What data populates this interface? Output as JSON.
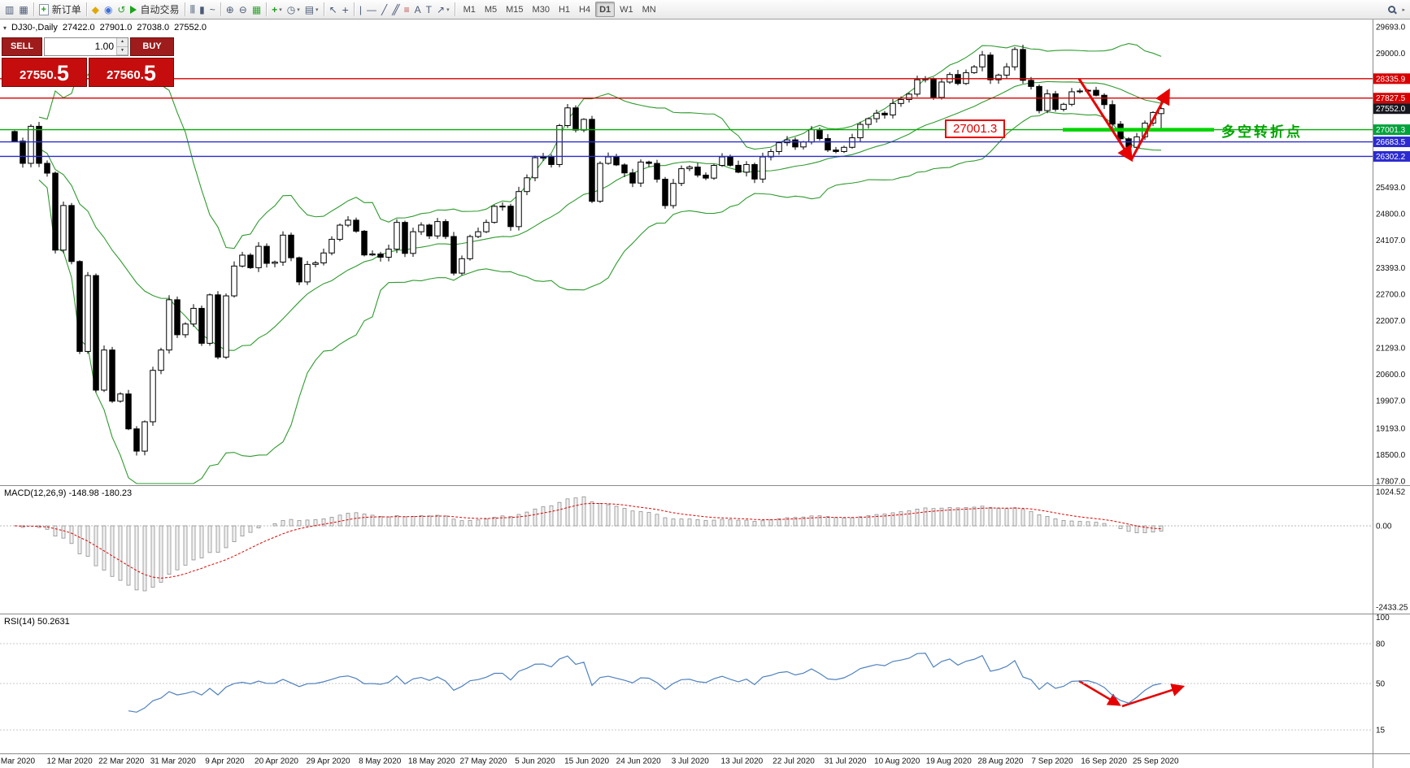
{
  "toolbar": {
    "new_order_label": "新订单",
    "auto_trading_label": "自动交易",
    "timeframes": [
      "M1",
      "M5",
      "M15",
      "M30",
      "H1",
      "H4",
      "D1",
      "W1",
      "MN"
    ],
    "active_timeframe": "D1",
    "icons": [
      "new-chart",
      "profiles",
      "new-order",
      "metaeditor",
      "market",
      "refresh",
      "auto-trading",
      "bar-chart",
      "candlestick-chart",
      "line-chart",
      "zoom-in",
      "zoom-out",
      "tile-windows",
      "indicators",
      "periods",
      "templates",
      "cursor",
      "crosshair",
      "vertical-line",
      "horizontal-line",
      "trendline",
      "channel",
      "fibonacci",
      "text",
      "text-label",
      "arrow-shapes",
      "search"
    ]
  },
  "trade_panel": {
    "sell_label": "SELL",
    "buy_label": "BUY",
    "volume": "1.00",
    "sell_price": "27550.5",
    "buy_price": "27560.5",
    "sell_price_main": "27550.",
    "sell_price_pip": "5",
    "buy_price_main": "27560.",
    "buy_price_pip": "5"
  },
  "chart": {
    "header": {
      "symbol_period": "DJ30-,Daily",
      "open": "27422.0",
      "high": "27901.0",
      "low": "27038.0",
      "close": "27552.0"
    },
    "annotations": {
      "price_callout": "27001.3",
      "turning_point": "多空转折点"
    },
    "price_axis": {
      "plain_labels": [
        {
          "text": "29693.0",
          "price": 29693.0
        },
        {
          "text": "29000.0",
          "price": 29000.0
        },
        {
          "text": "25493.0",
          "price": 25493.0
        },
        {
          "text": "24800.0",
          "price": 24800.0
        },
        {
          "text": "24107.0",
          "price": 24107.0
        },
        {
          "text": "23393.0",
          "price": 23393.0
        },
        {
          "text": "22700.0",
          "price": 22700.0
        },
        {
          "text": "22007.0",
          "price": 22007.0
        },
        {
          "text": "21293.0",
          "price": 21293.0
        },
        {
          "text": "20600.0",
          "price": 20600.0
        },
        {
          "text": "19907.0",
          "price": 19907.0
        },
        {
          "text": "19193.0",
          "price": 19193.0
        },
        {
          "text": "18500.0",
          "price": 18500.0
        },
        {
          "text": "17807.0",
          "price": 17807.0
        }
      ],
      "markers": [
        {
          "text": "28335.9",
          "price": 28335.9,
          "bg": "#d60000"
        },
        {
          "text": "27827.5",
          "price": 27827.5,
          "bg": "#d60000"
        },
        {
          "text": "27552.0",
          "price": 27552.0,
          "bg": "#17171f"
        },
        {
          "text": "27001.3",
          "price": 27001.3,
          "bg": "#00a23c"
        },
        {
          "text": "26683.5",
          "price": 26683.5,
          "bg": "#2b2bd0"
        },
        {
          "text": "26302.2",
          "price": 26302.2,
          "bg": "#2b2bd0"
        }
      ]
    },
    "level_lines": [
      {
        "price": 28335.9,
        "color": "#d60000"
      },
      {
        "price": 27827.5,
        "color": "#d60000"
      },
      {
        "price": 27001.3,
        "color": "#00b000"
      },
      {
        "price": 26683.5,
        "color": "#2b2bd0"
      },
      {
        "price": 26302.2,
        "color": "#2b2bd0"
      }
    ],
    "time_axis": [
      "Mar 2020",
      "12 Mar 2020",
      "22 Mar 2020",
      "31 Mar 2020",
      "9 Apr 2020",
      "20 Apr 2020",
      "29 Apr 2020",
      "8 May 2020",
      "18 May 2020",
      "27 May 2020",
      "5 Jun 2020",
      "15 Jun 2020",
      "24 Jun 2020",
      "3 Jul 2020",
      "13 Jul 2020",
      "22 Jul 2020",
      "31 Jul 2020",
      "10 Aug 2020",
      "19 Aug 2020",
      "28 Aug 2020",
      "7 Sep 2020",
      "16 Sep 2020",
      "25 Sep 2020"
    ]
  },
  "indicators": {
    "macd": {
      "title": "MACD(12,26,9)",
      "values": "-148.98 -180.23",
      "axis_labels": [
        {
          "text": "1024.52",
          "value": 1024.52
        },
        {
          "text": "0.00",
          "value": 0
        },
        {
          "text": "-2433.25",
          "value": -2433.25
        }
      ]
    },
    "rsi": {
      "title": "RSI(14)",
      "value": "50.2631",
      "axis_labels": [
        {
          "text": "100",
          "value": 100
        },
        {
          "text": "80",
          "value": 80
        },
        {
          "text": "50",
          "value": 50
        },
        {
          "text": "15",
          "value": 15
        }
      ],
      "levels": [
        80,
        50,
        15
      ]
    }
  },
  "chart_data": {
    "type": "candlestick",
    "symbol": "DJ30-",
    "timeframe": "Daily",
    "y_axis_range": [
      17807.0,
      29693.0
    ],
    "macd_axis_range": [
      -2433.25,
      1024.52
    ],
    "overlays": [
      {
        "name": "Bollinger Bands",
        "period": 20,
        "deviation": 2
      }
    ],
    "swing_low": 26310,
    "last_candle": {
      "open": 27422.0,
      "high": 27901.0,
      "low": 27038.0,
      "close": 27552.0
    },
    "closes": [
      26703,
      26121,
      27090,
      26121,
      25865,
      23851,
      25018,
      23553,
      21200,
      23185,
      20188,
      21237,
      19899,
      20087,
      19174,
      18592,
      19360,
      20705,
      21237,
      22552,
      21637,
      21917,
      22327,
      21413,
      22680,
      21052,
      22654,
      23434,
      23719,
      23391,
      23950,
      23505,
      23538,
      24243,
      23651,
      23019,
      23476,
      23516,
      23776,
      24134,
      24504,
      24634,
      24346,
      23724,
      23750,
      23665,
      23876,
      24576,
      23765,
      24332,
      24507,
      24222,
      24598,
      24207,
      23248,
      23626,
      24206,
      24332,
      24576,
      24996,
      25001,
      24466,
      25383,
      25743,
      26270,
      26281,
      26090,
      27110,
      27572,
      26990,
      27272,
      25128,
      26120,
      26290,
      26080,
      25871,
      25605,
      26156,
      26119,
      25706,
      25016,
      25596,
      25981,
      26024,
      25813,
      25735,
      26067,
      26290,
      26070,
      25890,
      26090,
      25710,
      26290,
      26430,
      26660,
      26735,
      26550,
      26680,
      27006,
      26770,
      26470,
      26430,
      26540,
      26790,
      27140,
      27290,
      27433,
      27387,
      27687,
      27791,
      27932,
      28308,
      28335,
      27845,
      28248,
      28445,
      28210,
      28494,
      28645,
      28954,
      28308,
      28430,
      28646,
      29101,
      28293,
      28133,
      27501,
      27940,
      27535,
      27666,
      27993,
      28015,
      28032,
      27902,
      27657,
      27148,
      26763,
      26541,
      26815,
      27174,
      27452,
      27552
    ],
    "rsi_levels": [
      80,
      50,
      15
    ]
  }
}
